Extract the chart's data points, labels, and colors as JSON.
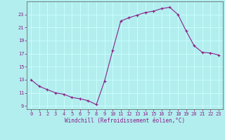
{
  "x": [
    0,
    1,
    2,
    3,
    4,
    5,
    6,
    7,
    8,
    9,
    10,
    11,
    12,
    13,
    14,
    15,
    16,
    17,
    18,
    19,
    20,
    21,
    22,
    23
  ],
  "y": [
    13.0,
    12.0,
    11.5,
    11.0,
    10.8,
    10.3,
    10.1,
    9.8,
    9.2,
    12.8,
    17.5,
    22.0,
    22.5,
    22.9,
    23.3,
    23.5,
    23.9,
    24.1,
    23.0,
    20.5,
    18.2,
    17.2,
    17.1,
    16.8
  ],
  "line_color": "#882288",
  "marker": "+",
  "marker_size": 3,
  "background_color": "#b2eeee",
  "grid_color": "#ccffff",
  "xlabel": "Windchill (Refroidissement éolien,°C)",
  "xlabel_color": "#882288",
  "tick_color": "#882288",
  "spine_color": "#555555",
  "ylim": [
    8.5,
    25.0
  ],
  "xlim": [
    -0.5,
    23.5
  ],
  "yticks": [
    9,
    11,
    13,
    15,
    17,
    19,
    21,
    23
  ],
  "xticks": [
    0,
    1,
    2,
    3,
    4,
    5,
    6,
    7,
    8,
    9,
    10,
    11,
    12,
    13,
    14,
    15,
    16,
    17,
    18,
    19,
    20,
    21,
    22,
    23
  ],
  "tick_fontsize": 5.0,
  "xlabel_fontsize": 5.5
}
